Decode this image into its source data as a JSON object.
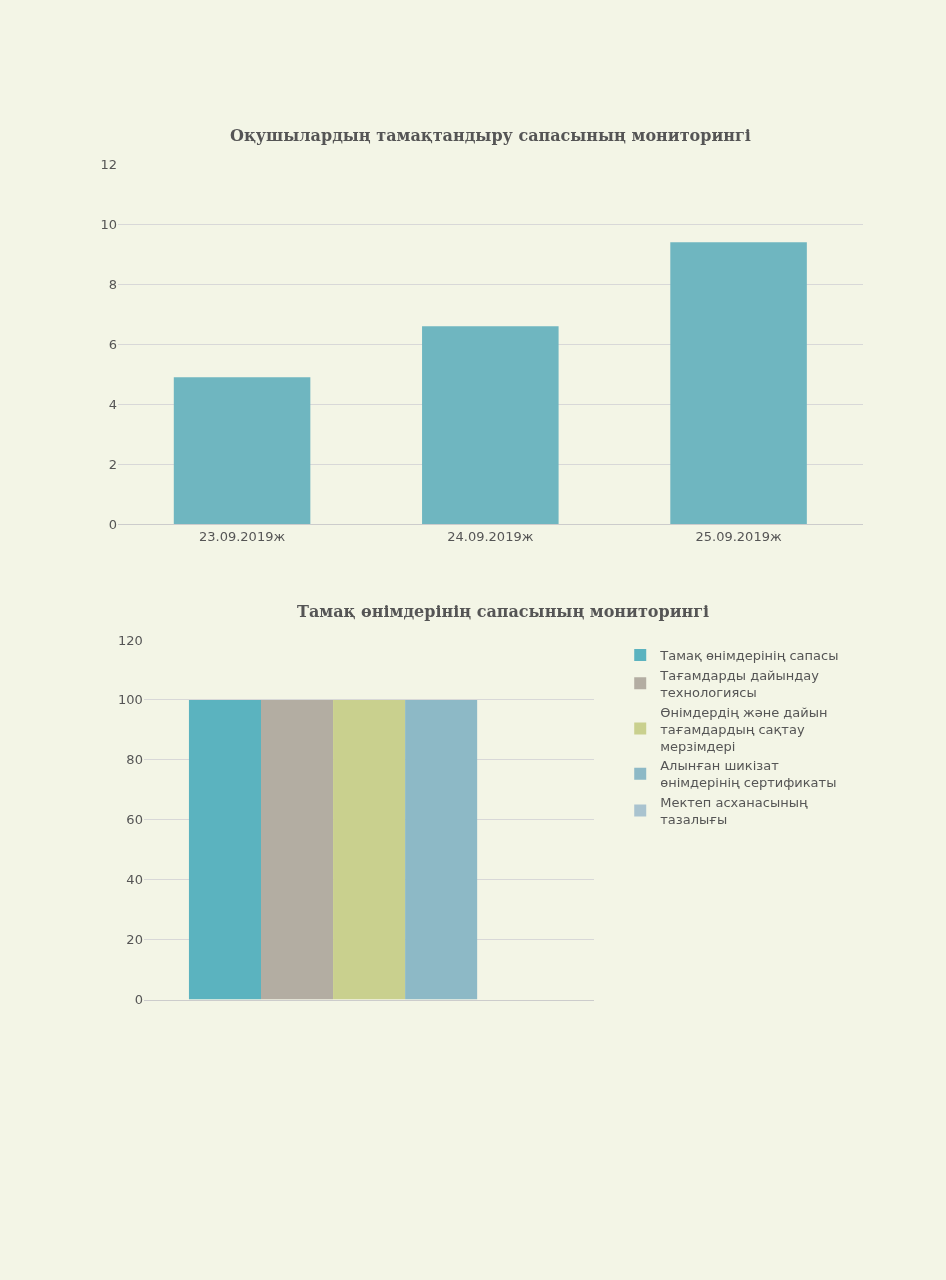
{
  "chart_data": [
    {
      "type": "bar",
      "title": "Оқушылардың тамақтандыру сапасының мониторингі",
      "categories": [
        "23.09.2019ж",
        "24.09.2019ж",
        "25.09.2019ж"
      ],
      "values": [
        4.9,
        6.6,
        9.4
      ],
      "color": "#6fb6c0",
      "ylim": [
        0,
        12
      ],
      "yticks": [
        0,
        2,
        4,
        6,
        8,
        10,
        12
      ],
      "grid": "y"
    },
    {
      "type": "bar",
      "title": "Тамақ өнімдерінің сапасының мониторингі",
      "categories": [
        null
      ],
      "series": [
        {
          "name": "Тамақ өнімдерінің сапасы",
          "color": "#5bb3bf",
          "values": [
            100
          ]
        },
        {
          "name": "Тағамдарды дайындау технологиясы",
          "color": "#b3ada2",
          "values": [
            100
          ]
        },
        {
          "name": "Өнімдердің және дайын тағамдардың сақтау мерзімдері",
          "color": "#c9d08e",
          "values": [
            100
          ]
        },
        {
          "name": "Алынған шикізат өнімдерінің сертификаты",
          "color": "#8db9c6",
          "values": [
            100
          ]
        },
        {
          "name": "Мектеп асханасының тазалығы",
          "color": "#a9c3cf",
          "values": [
            null
          ]
        }
      ],
      "ylim": [
        0,
        120
      ],
      "yticks": [
        0,
        20,
        40,
        60,
        80,
        100,
        120
      ],
      "grid": "y",
      "legend": "right",
      "tick_labels": "y"
    }
  ]
}
